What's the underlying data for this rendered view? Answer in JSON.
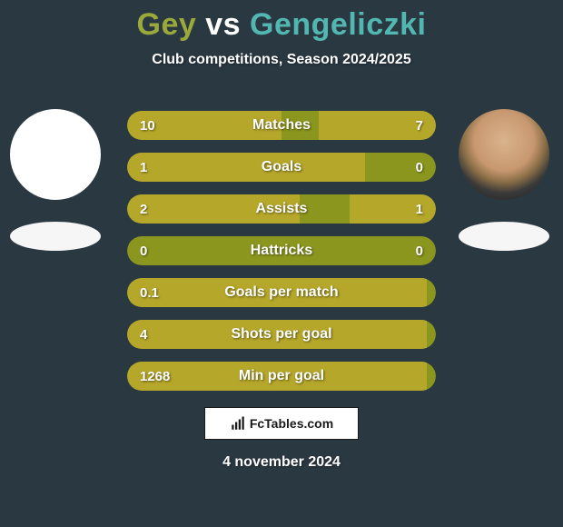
{
  "title": {
    "player1": "Gey",
    "vs": "vs",
    "player2": "Gengeliczki",
    "player1_color": "#9aa939",
    "vs_color": "#ffffff",
    "player2_color": "#53b7b1"
  },
  "subtitle": "Club competitions, Season 2024/2025",
  "player_left": {
    "has_portrait": false
  },
  "player_right": {
    "has_portrait": true
  },
  "bar_style": {
    "track_color": "#8b961f",
    "fill_left_color": "#b5a72a",
    "fill_right_color": "#b5a72a",
    "height": 32,
    "radius": 16,
    "label_fontsize": 16,
    "value_fontsize": 15,
    "text_color": "#ffffff"
  },
  "stats": [
    {
      "label": "Matches",
      "left_val": "10",
      "right_val": "7",
      "left_pct": 50,
      "right_pct": 38
    },
    {
      "label": "Goals",
      "left_val": "1",
      "right_val": "0",
      "left_pct": 77,
      "right_pct": 0
    },
    {
      "label": "Assists",
      "left_val": "2",
      "right_val": "1",
      "left_pct": 56,
      "right_pct": 28
    },
    {
      "label": "Hattricks",
      "left_val": "0",
      "right_val": "0",
      "left_pct": 0,
      "right_pct": 0
    },
    {
      "label": "Goals per match",
      "left_val": "0.1",
      "right_val": "",
      "left_pct": 97,
      "right_pct": 0
    },
    {
      "label": "Shots per goal",
      "left_val": "4",
      "right_val": "",
      "left_pct": 97,
      "right_pct": 0
    },
    {
      "label": "Min per goal",
      "left_val": "1268",
      "right_val": "",
      "left_pct": 97,
      "right_pct": 0
    }
  ],
  "footer": {
    "logo_text": "FcTables.com",
    "date": "4 november 2024"
  },
  "colors": {
    "background": "#2a3842",
    "avatar_bg": "#ffffff",
    "emblem_bg": "#f6f6f6"
  }
}
